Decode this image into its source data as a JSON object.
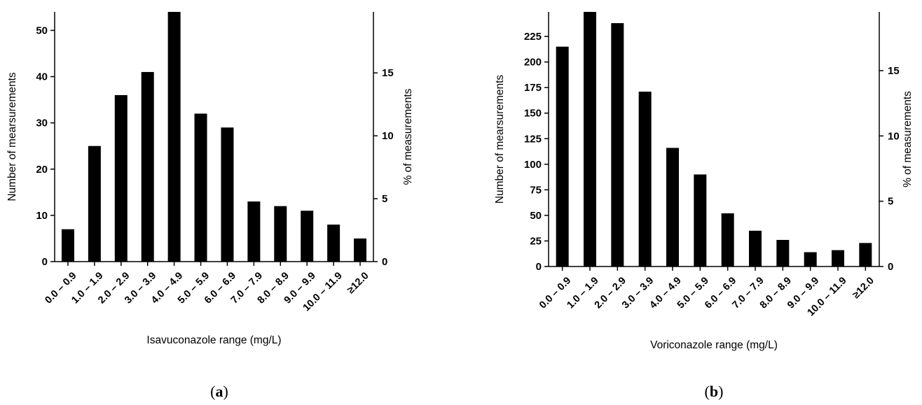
{
  "chart_data": [
    {
      "type": "bar",
      "panel": "(a)",
      "panel_letter": "a",
      "categories": [
        "0.0 – 0.9",
        "1.0 – 1.9",
        "2.0 – 2.9",
        "3.0 – 3.9",
        "4.0 – 4.9",
        "5.0 – 5.9",
        "6.0 – 6.9",
        "7.0 – 7.9",
        "8.0 – 8.9",
        "9.0 – 9.9",
        "10.0 – 11.9",
        "≥12.0"
      ],
      "values": [
        7,
        25,
        36,
        41,
        54,
        32,
        29,
        13,
        12,
        11,
        8,
        5
      ],
      "xlabel": "Isavuconazole range (mg/L)",
      "ylabel": "Number of mearsurements",
      "y2label": "% of measurements",
      "ylim": [
        0,
        54
      ],
      "yticks": [
        0,
        10,
        20,
        30,
        40,
        50
      ],
      "y2lim": [
        0,
        19.85
      ],
      "y2ticks": [
        0,
        5,
        10,
        15
      ],
      "bar_color": "#000000",
      "grid": false
    },
    {
      "type": "bar",
      "panel": "(b)",
      "panel_letter": "b",
      "categories": [
        "0.0 – 0.9",
        "1.0 – 1.9",
        "2.0 – 2.9",
        "3.0 – 3.9",
        "4.0 – 4.9",
        "5.0 – 5.9",
        "6.0 – 6.9",
        "7.0 – 7.9",
        "8.0 – 8.9",
        "9.0 – 9.9",
        "10.0 – 11.9",
        "≥12.0"
      ],
      "values": [
        215,
        249,
        238,
        171,
        116,
        90,
        52,
        35,
        26,
        14,
        16,
        23
      ],
      "xlabel": "Voriconazole range (mg/L)",
      "ylabel": "Number of mearsurements",
      "y2label": "% of measurements",
      "ylim": [
        0,
        249
      ],
      "yticks": [
        0,
        25,
        50,
        75,
        100,
        125,
        150,
        175,
        200,
        225
      ],
      "y2lim": [
        0,
        19.5
      ],
      "y2ticks": [
        0,
        5,
        10,
        15
      ],
      "bar_color": "#000000",
      "grid": false
    }
  ]
}
